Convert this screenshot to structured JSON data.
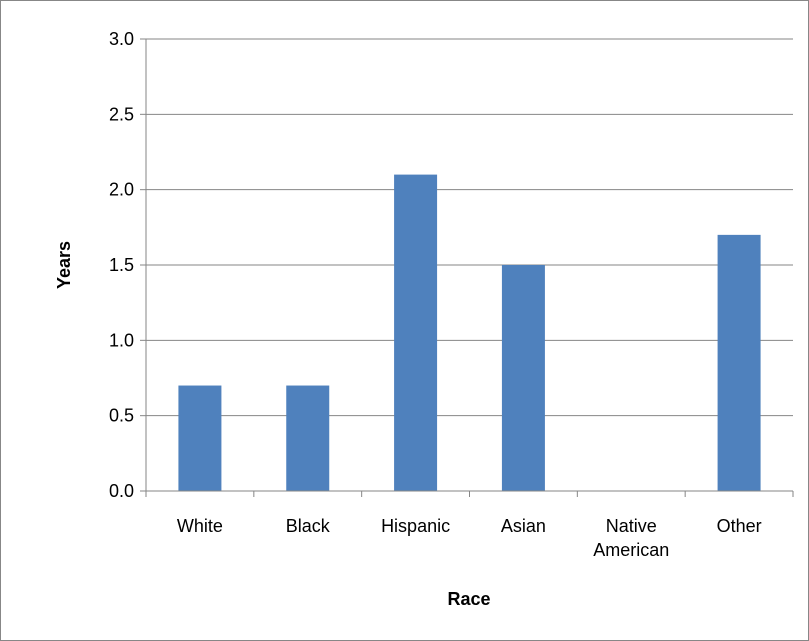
{
  "chart_data": {
    "type": "bar",
    "categories": [
      [
        "White"
      ],
      [
        "Black"
      ],
      [
        "Hispanic"
      ],
      [
        "Asian"
      ],
      [
        "Native",
        "American"
      ],
      [
        "Other"
      ]
    ],
    "values": [
      0.7,
      0.7,
      2.1,
      1.5,
      0,
      1.7
    ],
    "xlabel": "Race",
    "ylabel": "Years",
    "ylim": [
      0,
      3.0
    ],
    "yticks": [
      "0.0",
      "0.5",
      "1.0",
      "1.5",
      "2.0",
      "2.5",
      "3.0"
    ],
    "grid": true,
    "legend": "none",
    "colors": {
      "bar": "#4f81bd",
      "grid": "#868686",
      "axis": "#868686"
    }
  }
}
